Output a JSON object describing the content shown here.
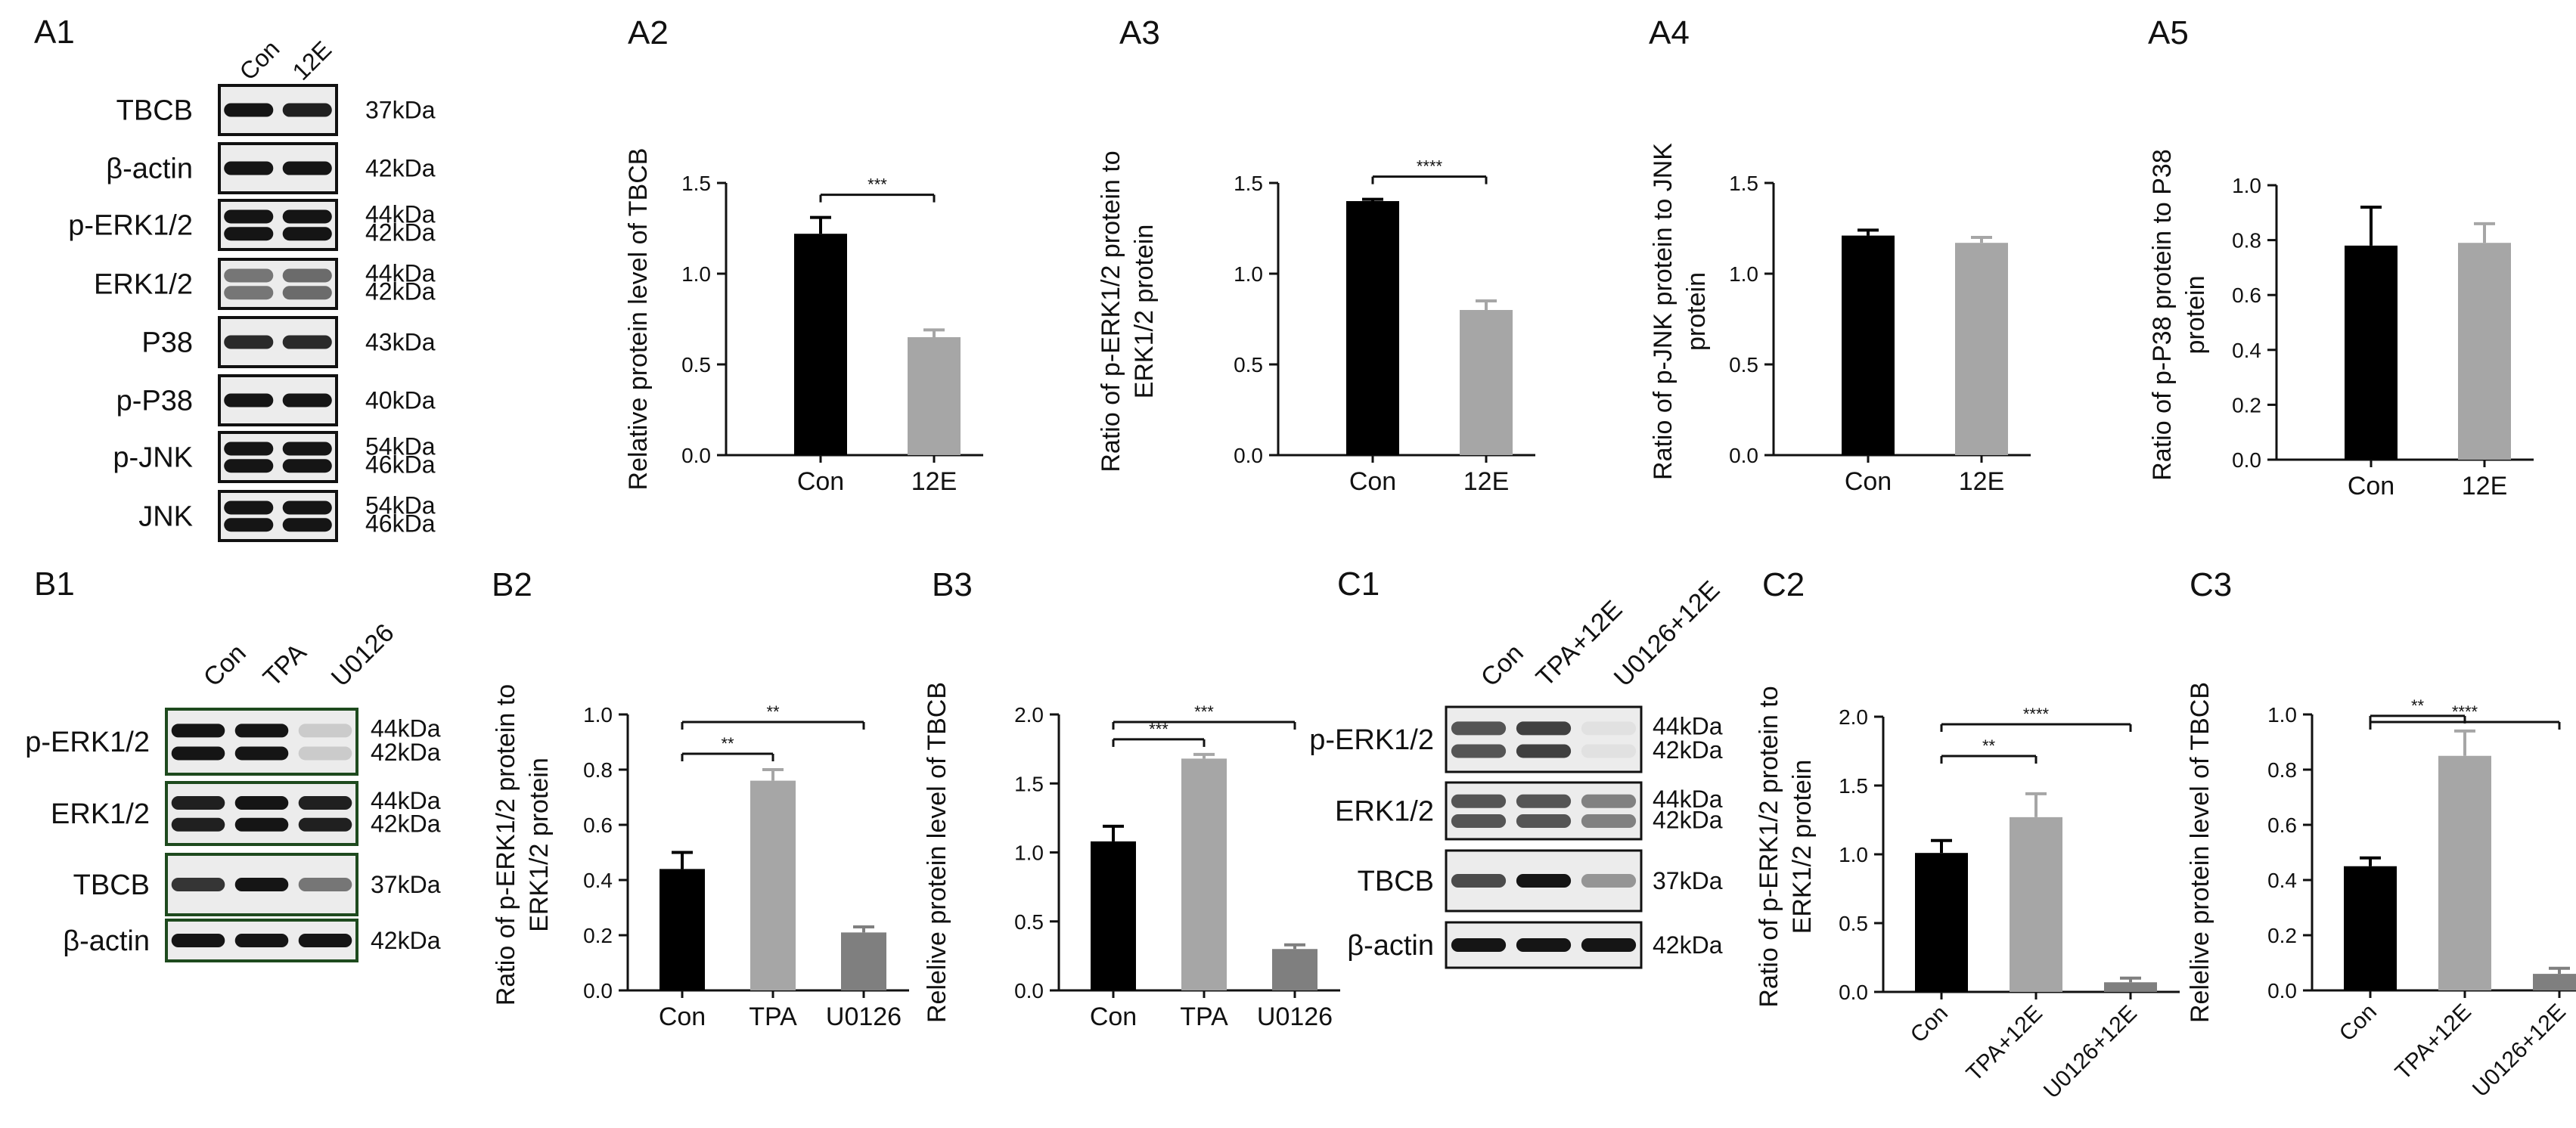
{
  "panels": {
    "A1": {
      "label": "A1",
      "lanes": [
        "Con",
        "12E"
      ],
      "rows": [
        {
          "name": "TBCB",
          "kda": [
            "37kDa"
          ],
          "bands": 1
        },
        {
          "name": "β-actin",
          "kda": [
            "42kDa"
          ],
          "bands": 1
        },
        {
          "name": "p-ERK1/2",
          "kda": [
            "44kDa",
            "42kDa"
          ],
          "bands": 2
        },
        {
          "name": "ERK1/2",
          "kda": [
            "44kDa",
            "42kDa"
          ],
          "bands": 2
        },
        {
          "name": "P38",
          "kda": [
            "43kDa"
          ],
          "bands": 1
        },
        {
          "name": "p-P38",
          "kda": [
            "40kDa"
          ],
          "bands": 1
        },
        {
          "name": "p-JNK",
          "kda": [
            "54kDa",
            "46kDa"
          ],
          "bands": 2
        },
        {
          "name": "JNK",
          "kda": [
            "54kDa",
            "46kDa"
          ],
          "bands": 2
        }
      ]
    },
    "B1": {
      "label": "B1",
      "lanes": [
        "Con",
        "TPA",
        "U0126"
      ],
      "rows": [
        {
          "name": "p-ERK1/2",
          "kda": [
            "44kDa",
            "42kDa"
          ],
          "bands": 2
        },
        {
          "name": "ERK1/2",
          "kda": [
            "44kDa",
            "42kDa"
          ],
          "bands": 2
        },
        {
          "name": "TBCB",
          "kda": [
            "37kDa"
          ],
          "bands": 1
        },
        {
          "name": "β-actin",
          "kda": [
            "42kDa"
          ],
          "bands": 1
        }
      ]
    },
    "C1": {
      "label": "C1",
      "lanes": [
        "Con",
        "TPA+12E",
        "U0126+12E"
      ],
      "rows": [
        {
          "name": "p-ERK1/2",
          "kda": [
            "44kDa",
            "42kDa"
          ],
          "bands": 2
        },
        {
          "name": "ERK1/2",
          "kda": [
            "44kDa",
            "42kDa"
          ],
          "bands": 2
        },
        {
          "name": "TBCB",
          "kda": [
            "37kDa"
          ],
          "bands": 1
        },
        {
          "name": "β-actin",
          "kda": [
            "42kDa"
          ],
          "bands": 1
        }
      ]
    }
  },
  "chart_data": [
    {
      "id": "A2",
      "label": "A2",
      "type": "bar",
      "categories": [
        "Con",
        "12E"
      ],
      "values": [
        1.22,
        0.65
      ],
      "errors": [
        0.09,
        0.04
      ],
      "ylabel": [
        "Relative protein level of TBCB"
      ],
      "ylim": [
        0,
        1.5
      ],
      "yticks": [
        "0.0",
        "0.5",
        "1.0",
        "1.5"
      ],
      "rotated_xticks": false,
      "bar_colors": [
        "#000000",
        "#a6a6a6"
      ],
      "significance": [
        {
          "from": 0,
          "to": 1,
          "text": "***"
        }
      ]
    },
    {
      "id": "A3",
      "label": "A3",
      "type": "bar",
      "categories": [
        "Con",
        "12E"
      ],
      "values": [
        1.4,
        0.8
      ],
      "errors": [
        0.01,
        0.05
      ],
      "ylabel": [
        "Ratio of p-ERK1/2 protein to",
        "ERK1/2 protein"
      ],
      "ylim": [
        0,
        1.5
      ],
      "yticks": [
        "0.0",
        "0.5",
        "1.0",
        "1.5"
      ],
      "rotated_xticks": false,
      "bar_colors": [
        "#000000",
        "#a6a6a6"
      ],
      "significance": [
        {
          "from": 0,
          "to": 1,
          "text": "****"
        }
      ]
    },
    {
      "id": "A4",
      "label": "A4",
      "type": "bar",
      "categories": [
        "Con",
        "12E"
      ],
      "values": [
        1.21,
        1.17
      ],
      "errors": [
        0.03,
        0.03
      ],
      "ylabel": [
        "Ratio of p-JNK protein to JNK",
        "protein"
      ],
      "ylim": [
        0,
        1.5
      ],
      "yticks": [
        "0.0",
        "0.5",
        "1.0",
        "1.5"
      ],
      "rotated_xticks": false,
      "bar_colors": [
        "#000000",
        "#a6a6a6"
      ],
      "significance": []
    },
    {
      "id": "A5",
      "label": "A5",
      "type": "bar",
      "categories": [
        "Con",
        "12E"
      ],
      "values": [
        0.78,
        0.79
      ],
      "errors": [
        0.14,
        0.07
      ],
      "ylabel": [
        "Ratio of p-P38 protein to P38",
        "protein"
      ],
      "ylim": [
        0,
        1.0
      ],
      "yticks": [
        "0.0",
        "0.2",
        "0.4",
        "0.6",
        "0.8",
        "1.0"
      ],
      "rotated_xticks": false,
      "bar_colors": [
        "#000000",
        "#a6a6a6"
      ],
      "significance": []
    },
    {
      "id": "B2",
      "label": "B2",
      "type": "bar",
      "categories": [
        "Con",
        "TPA",
        "U0126"
      ],
      "values": [
        0.44,
        0.76,
        0.21
      ],
      "errors": [
        0.06,
        0.04,
        0.02
      ],
      "ylabel": [
        "Ratio of p-ERK1/2 protein to",
        "ERK1/2 protein"
      ],
      "ylim": [
        0,
        1.0
      ],
      "yticks": [
        "0.0",
        "0.2",
        "0.4",
        "0.6",
        "0.8",
        "1.0"
      ],
      "rotated_xticks": false,
      "bar_colors": [
        "#000000",
        "#a6a6a6",
        "#7f7f7f"
      ],
      "significance": [
        {
          "from": 0,
          "to": 1,
          "text": "**"
        },
        {
          "from": 0,
          "to": 2,
          "text": "**"
        }
      ]
    },
    {
      "id": "B3",
      "label": "B3",
      "type": "bar",
      "categories": [
        "Con",
        "TPA",
        "U0126"
      ],
      "values": [
        1.08,
        1.68,
        0.3
      ],
      "errors": [
        0.11,
        0.03,
        0.03
      ],
      "ylabel": [
        "Relelive protein level of TBCB"
      ],
      "ylim": [
        0,
        2.0
      ],
      "yticks": [
        "0.0",
        "0.5",
        "1.0",
        "1.5",
        "2.0"
      ],
      "rotated_xticks": false,
      "bar_colors": [
        "#000000",
        "#a6a6a6",
        "#7f7f7f"
      ],
      "significance": [
        {
          "from": 0,
          "to": 1,
          "text": "***"
        },
        {
          "from": 0,
          "to": 2,
          "text": "***"
        }
      ]
    },
    {
      "id": "C2",
      "label": "C2",
      "type": "bar",
      "categories": [
        "Con",
        "TPA+12E",
        "U0126+12E"
      ],
      "values": [
        1.01,
        1.27,
        0.07
      ],
      "errors": [
        0.09,
        0.17,
        0.03
      ],
      "ylabel": [
        "Ratio of p-ERK1/2 protein to",
        "ERK1/2 protein"
      ],
      "ylim": [
        0,
        2.0
      ],
      "yticks": [
        "0.0",
        "0.5",
        "1.0",
        "1.5",
        "2.0"
      ],
      "rotated_xticks": true,
      "bar_colors": [
        "#000000",
        "#a6a6a6",
        "#7f7f7f"
      ],
      "significance": [
        {
          "from": 0,
          "to": 1,
          "text": "**"
        },
        {
          "from": 0,
          "to": 2,
          "text": "****"
        }
      ]
    },
    {
      "id": "C3",
      "label": "C3",
      "type": "bar",
      "categories": [
        "Con",
        "TPA+12E",
        "U0126+12E"
      ],
      "values": [
        0.45,
        0.85,
        0.06
      ],
      "errors": [
        0.03,
        0.09,
        0.02
      ],
      "ylabel": [
        "Relelive protein level of TBCB"
      ],
      "ylim": [
        0,
        1.0
      ],
      "yticks": [
        "0.0",
        "0.2",
        "0.4",
        "0.6",
        "0.8",
        "1.0"
      ],
      "rotated_xticks": true,
      "bar_colors": [
        "#000000",
        "#a6a6a6",
        "#7f7f7f"
      ],
      "significance": [
        {
          "from": 0,
          "to": 1,
          "text": "**"
        },
        {
          "from": 0,
          "to": 2,
          "text": "****"
        }
      ]
    }
  ]
}
